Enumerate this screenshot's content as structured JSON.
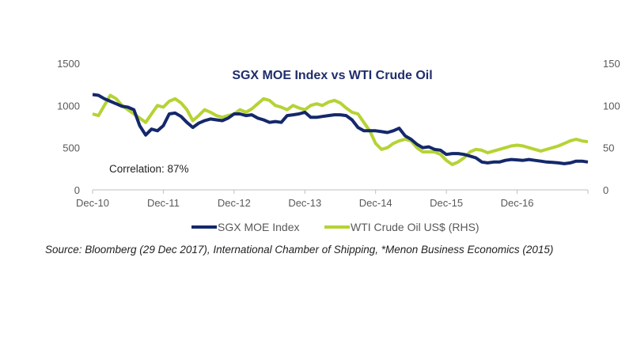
{
  "chart_data": {
    "type": "line",
    "title": "SGX MOE Index vs WTI Crude Oil",
    "annotation": "Correlation: 87%",
    "x_ticks": [
      "Dec-10",
      "Dec-11",
      "Dec-12",
      "Dec-13",
      "Dec-14",
      "Dec-15",
      "Dec-16"
    ],
    "x_unit": "months since Dec-10",
    "x_range": [
      0,
      84
    ],
    "left_axis": {
      "ylim": [
        0,
        1500
      ],
      "ticks": [
        0,
        500,
        1000,
        1500
      ]
    },
    "right_axis": {
      "ylim": [
        0,
        150
      ],
      "ticks": [
        0,
        50,
        100,
        150
      ]
    },
    "legend_position": "bottom",
    "series": [
      {
        "name": "SGX MOE Index",
        "axis": "left",
        "color": "#14286b",
        "values": [
          1130,
          1120,
          1080,
          1050,
          1020,
          990,
          980,
          950,
          760,
          650,
          720,
          700,
          760,
          900,
          910,
          870,
          800,
          740,
          790,
          820,
          840,
          830,
          820,
          850,
          900,
          900,
          880,
          890,
          850,
          830,
          800,
          810,
          800,
          880,
          890,
          900,
          920,
          860,
          860,
          870,
          880,
          890,
          890,
          880,
          830,
          740,
          700,
          700,
          700,
          690,
          680,
          700,
          730,
          640,
          600,
          540,
          500,
          510,
          480,
          470,
          420,
          430,
          430,
          420,
          400,
          380,
          330,
          320,
          330,
          330,
          350,
          360,
          355,
          350,
          360,
          350,
          340,
          330,
          325,
          320,
          310,
          320,
          340,
          340,
          330
        ]
      },
      {
        "name": "WTI Crude Oil US$ (RHS)",
        "axis": "right",
        "color": "#b5d334",
        "values": [
          90,
          88,
          100,
          112,
          108,
          100,
          95,
          90,
          85,
          80,
          90,
          100,
          98,
          105,
          108,
          103,
          95,
          82,
          88,
          95,
          92,
          88,
          86,
          88,
          90,
          95,
          92,
          96,
          102,
          108,
          106,
          100,
          98,
          95,
          100,
          97,
          95,
          100,
          102,
          100,
          104,
          106,
          103,
          97,
          92,
          90,
          80,
          70,
          55,
          48,
          50,
          55,
          58,
          60,
          58,
          50,
          45,
          45,
          45,
          42,
          35,
          30,
          33,
          38,
          45,
          48,
          47,
          44,
          46,
          48,
          50,
          52,
          53,
          52,
          50,
          48,
          46,
          48,
          50,
          52,
          55,
          58,
          60,
          58,
          57
        ]
      }
    ]
  },
  "source": "Source: Bloomberg (29 Dec 2017), International Chamber of Shipping, *Menon Business Economics (2015)"
}
